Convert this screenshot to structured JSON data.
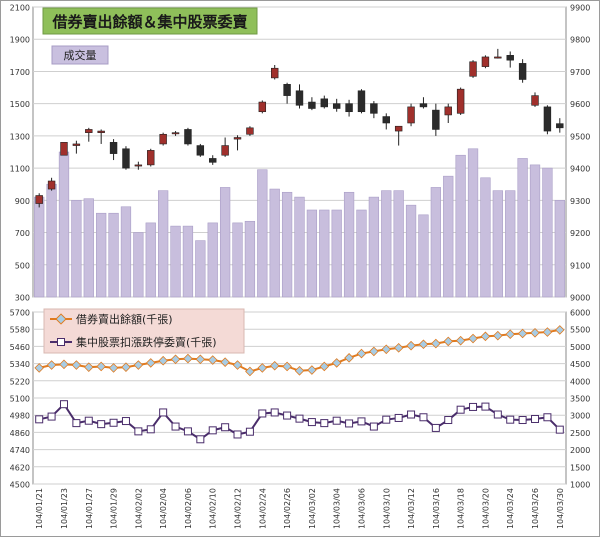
{
  "title": "借券賣出餘額＆集中股票委賣",
  "volume_label": "成交量",
  "legend": {
    "lending": "借券賣出餘額(千張)",
    "sell": "集中股票扣漲跌停委賣(千張)"
  },
  "colors": {
    "title_bg": "#8fbf5a",
    "up_candle": "#a0302c",
    "down_candle": "#2b2b2b",
    "volume_bar": "#c8bedd",
    "lending_line": "#e07b20",
    "lending_marker": "#a8cce4",
    "sell_line": "#4a2d6b",
    "legend_bg": "#f4dad6"
  },
  "chart_data": [
    {
      "type": "candlestick",
      "title": "借券賣出餘額＆集中股票委賣",
      "left_axis_ticks": [
        "300",
        "500",
        "700",
        "900",
        "1100",
        "1300",
        "1500",
        "1700",
        "1900",
        "2100"
      ],
      "right_axis_ticks": [
        "9000",
        "9100",
        "9200",
        "9300",
        "9400",
        "9500",
        "9600",
        "9700",
        "9800",
        "9900"
      ],
      "ylim_left": [
        300,
        2100
      ],
      "ylim_right": [
        9000,
        9900
      ],
      "grid": true,
      "x": [
        "104/01/21",
        "104/01/22",
        "104/01/23",
        "104/01/26",
        "104/01/27",
        "104/01/28",
        "104/01/29",
        "104/01/30",
        "104/02/02",
        "104/02/03",
        "104/02/04",
        "104/02/05",
        "104/02/06",
        "104/02/09",
        "104/02/10",
        "104/02/11",
        "104/02/12",
        "104/02/13",
        "104/02/24",
        "104/02/25",
        "104/02/26",
        "104/02/27",
        "104/03/02",
        "104/03/03",
        "104/03/04",
        "104/03/05",
        "104/03/06",
        "104/03/09",
        "104/03/10",
        "104/03/11",
        "104/03/12",
        "104/03/13",
        "104/03/16",
        "104/03/17",
        "104/03/18",
        "104/03/19",
        "104/03/20",
        "104/03/23",
        "104/03/24",
        "104/03/25",
        "104/03/26",
        "104/03/27",
        "104/03/30"
      ],
      "x_tick_labels": [
        "104/01/21",
        "104/01/23",
        "104/01/27",
        "104/01/29",
        "104/02/02",
        "104/02/04",
        "104/02/06",
        "104/02/10",
        "104/02/12",
        "104/02/24",
        "104/02/26",
        "104/03/02",
        "104/03/04",
        "104/03/06",
        "104/03/10",
        "104/03/12",
        "104/03/16",
        "104/03/18",
        "104/03/20",
        "104/03/24",
        "104/03/26",
        "104/03/30"
      ],
      "volume": {
        "name": "成交量",
        "values": [
          920,
          1000,
          1200,
          900,
          910,
          820,
          820,
          860,
          700,
          760,
          960,
          740,
          740,
          650,
          760,
          980,
          760,
          770,
          1090,
          970,
          950,
          920,
          840,
          840,
          840,
          950,
          840,
          920,
          960,
          960,
          870,
          810,
          980,
          1050,
          1180,
          1220,
          1040,
          960,
          960,
          1160,
          1120,
          1100,
          900
        ]
      },
      "candles": [
        {
          "o": 9290,
          "h": 9322,
          "l": 9278,
          "c": 9315
        },
        {
          "o": 9335,
          "h": 9370,
          "l": 9330,
          "c": 9360
        },
        {
          "o": 9440,
          "h": 9470,
          "l": 9440,
          "c": 9480
        },
        {
          "o": 9470,
          "h": 9485,
          "l": 9445,
          "c": 9475
        },
        {
          "o": 9510,
          "h": 9525,
          "l": 9482,
          "c": 9520
        },
        {
          "o": 9510,
          "h": 9520,
          "l": 9475,
          "c": 9515
        },
        {
          "o": 9480,
          "h": 9490,
          "l": 9425,
          "c": 9445
        },
        {
          "o": 9460,
          "h": 9468,
          "l": 9395,
          "c": 9400
        },
        {
          "o": 9408,
          "h": 9420,
          "l": 9395,
          "c": 9410
        },
        {
          "o": 9410,
          "h": 9460,
          "l": 9405,
          "c": 9455
        },
        {
          "o": 9475,
          "h": 9510,
          "l": 9470,
          "c": 9505
        },
        {
          "o": 9510,
          "h": 9515,
          "l": 9500,
          "c": 9510
        },
        {
          "o": 9520,
          "h": 9525,
          "l": 9470,
          "c": 9475
        },
        {
          "o": 9470,
          "h": 9475,
          "l": 9435,
          "c": 9440
        },
        {
          "o": 9430,
          "h": 9440,
          "l": 9410,
          "c": 9418
        },
        {
          "o": 9440,
          "h": 9495,
          "l": 9435,
          "c": 9470
        },
        {
          "o": 9490,
          "h": 9502,
          "l": 9455,
          "c": 9495
        },
        {
          "o": 9505,
          "h": 9530,
          "l": 9500,
          "c": 9525
        },
        {
          "o": 9575,
          "h": 9610,
          "l": 9570,
          "c": 9605
        },
        {
          "o": 9680,
          "h": 9720,
          "l": 9675,
          "c": 9710
        },
        {
          "o": 9660,
          "h": 9665,
          "l": 9600,
          "c": 9625
        },
        {
          "o": 9640,
          "h": 9660,
          "l": 9585,
          "c": 9595
        },
        {
          "o": 9605,
          "h": 9620,
          "l": 9580,
          "c": 9585
        },
        {
          "o": 9615,
          "h": 9625,
          "l": 9585,
          "c": 9590
        },
        {
          "o": 9600,
          "h": 9615,
          "l": 9575,
          "c": 9585
        },
        {
          "o": 9600,
          "h": 9612,
          "l": 9560,
          "c": 9575
        },
        {
          "o": 9640,
          "h": 9645,
          "l": 9570,
          "c": 9575
        },
        {
          "o": 9600,
          "h": 9608,
          "l": 9555,
          "c": 9570
        },
        {
          "o": 9560,
          "h": 9570,
          "l": 9520,
          "c": 9540
        },
        {
          "o": 9515,
          "h": 9525,
          "l": 9470,
          "c": 9530
        },
        {
          "o": 9540,
          "h": 9600,
          "l": 9530,
          "c": 9590
        },
        {
          "o": 9600,
          "h": 9620,
          "l": 9585,
          "c": 9590
        },
        {
          "o": 9580,
          "h": 9600,
          "l": 9500,
          "c": 9520
        },
        {
          "o": 9565,
          "h": 9600,
          "l": 9540,
          "c": 9590
        },
        {
          "o": 9570,
          "h": 9650,
          "l": 9565,
          "c": 9645
        },
        {
          "o": 9685,
          "h": 9735,
          "l": 9680,
          "c": 9730
        },
        {
          "o": 9715,
          "h": 9750,
          "l": 9710,
          "c": 9745
        },
        {
          "o": 9745,
          "h": 9770,
          "l": 9740,
          "c": 9745
        },
        {
          "o": 9750,
          "h": 9762,
          "l": 9712,
          "c": 9735
        },
        {
          "o": 9725,
          "h": 9738,
          "l": 9665,
          "c": 9675
        },
        {
          "o": 9595,
          "h": 9635,
          "l": 9590,
          "c": 9625
        },
        {
          "o": 9590,
          "h": 9595,
          "l": 9505,
          "c": 9515
        },
        {
          "o": 9538,
          "h": 9555,
          "l": 9510,
          "c": 9525
        }
      ]
    },
    {
      "type": "line",
      "left_axis_ticks": [
        "4500",
        "4620",
        "4740",
        "4860",
        "4980",
        "5100",
        "5220",
        "5340",
        "5460",
        "5580",
        "5700"
      ],
      "right_axis_ticks": [
        "1000",
        "1500",
        "2000",
        "2500",
        "3000",
        "3500",
        "4000",
        "4500",
        "5000",
        "5500",
        "6000"
      ],
      "ylim_left": [
        4500,
        5700
      ],
      "ylim_right": [
        1000,
        6000
      ],
      "grid": true,
      "series": [
        {
          "name": "借券賣出餘額(千張)",
          "axis": "left",
          "values": [
            5310,
            5330,
            5335,
            5330,
            5315,
            5320,
            5310,
            5315,
            5330,
            5345,
            5360,
            5370,
            5375,
            5370,
            5365,
            5350,
            5330,
            5285,
            5310,
            5325,
            5320,
            5290,
            5295,
            5320,
            5345,
            5380,
            5410,
            5425,
            5440,
            5450,
            5465,
            5475,
            5480,
            5495,
            5500,
            5515,
            5530,
            5535,
            5545,
            5550,
            5555,
            5560,
            5575
          ]
        },
        {
          "name": "集中股票扣漲跌停委賣(千張)",
          "axis": "right",
          "values": [
            2880,
            2960,
            3320,
            2770,
            2840,
            2740,
            2780,
            2830,
            2530,
            2590,
            3080,
            2670,
            2530,
            2300,
            2560,
            2650,
            2440,
            2520,
            3050,
            3080,
            2990,
            2900,
            2800,
            2770,
            2840,
            2760,
            2820,
            2670,
            2870,
            2920,
            3020,
            2940,
            2630,
            2860,
            3160,
            3240,
            3250,
            3020,
            2870,
            2860,
            2890,
            2940,
            2580
          ]
        }
      ]
    }
  ]
}
